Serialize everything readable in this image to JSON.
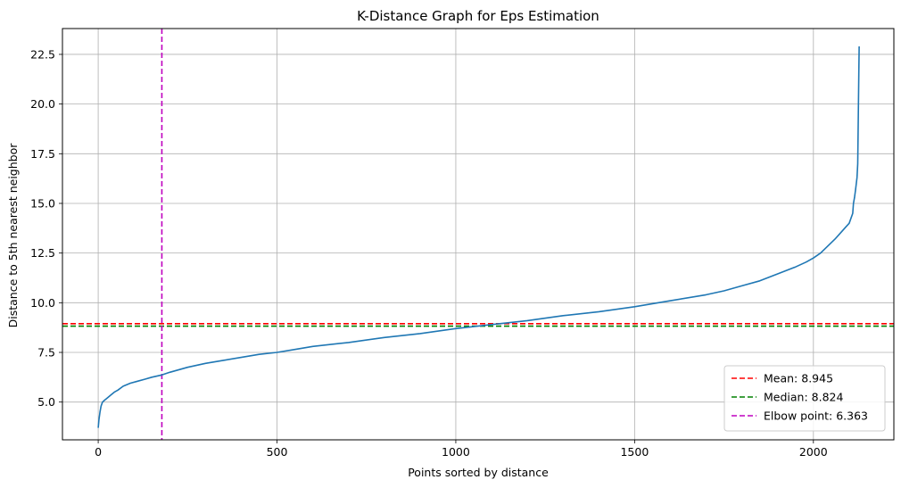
{
  "chart_data": {
    "type": "line",
    "title": "K-Distance Graph for Eps Estimation",
    "xlabel": "Points sorted by distance",
    "ylabel": "Distance to 5th nearest neighbor",
    "xlim": [
      -100,
      2225
    ],
    "ylim": [
      3.1,
      23.8
    ],
    "xticks": [
      0,
      500,
      1000,
      1500,
      2000
    ],
    "xtick_labels": [
      "0",
      "500",
      "1000",
      "1500",
      "2000"
    ],
    "yticks": [
      5.0,
      7.5,
      10.0,
      12.5,
      15.0,
      17.5,
      20.0,
      22.5
    ],
    "ytick_labels": [
      "5.0",
      "7.5",
      "10.0",
      "12.5",
      "15.0",
      "17.5",
      "20.0",
      "22.5"
    ],
    "grid": true,
    "legend_position": "bottom-right",
    "series": [
      {
        "color": "#1f77b4",
        "x": [
          0,
          2,
          5,
          8,
          12,
          18,
          25,
          35,
          45,
          55,
          70,
          90,
          110,
          130,
          150,
          178,
          200,
          250,
          300,
          350,
          400,
          450,
          500,
          550,
          600,
          700,
          800,
          900,
          1000,
          1100,
          1200,
          1300,
          1400,
          1500,
          1600,
          1700,
          1750,
          1800,
          1850,
          1900,
          1950,
          1980,
          2000,
          2020,
          2040,
          2060,
          2080,
          2090,
          2100,
          2110,
          2112,
          2115,
          2118,
          2120,
          2122,
          2124,
          2125,
          2126,
          2127,
          2128
        ],
        "y": [
          3.7,
          4.1,
          4.5,
          4.8,
          5.0,
          5.1,
          5.2,
          5.35,
          5.5,
          5.6,
          5.8,
          5.95,
          6.05,
          6.15,
          6.25,
          6.363,
          6.5,
          6.75,
          6.95,
          7.1,
          7.25,
          7.4,
          7.5,
          7.65,
          7.8,
          8.0,
          8.25,
          8.45,
          8.7,
          8.9,
          9.1,
          9.35,
          9.55,
          9.8,
          10.1,
          10.4,
          10.6,
          10.85,
          11.1,
          11.45,
          11.8,
          12.05,
          12.25,
          12.5,
          12.85,
          13.2,
          13.6,
          13.8,
          14.0,
          14.5,
          15.0,
          15.3,
          15.7,
          16.0,
          16.3,
          17.0,
          18.5,
          20.0,
          21.5,
          22.9
        ]
      }
    ],
    "reference_lines": [
      {
        "orientation": "horizontal",
        "value": 8.945,
        "color": "#ff0000",
        "label": "Mean: 8.945"
      },
      {
        "orientation": "horizontal",
        "value": 8.824,
        "color": "#008000",
        "label": "Median: 8.824"
      },
      {
        "orientation": "vertical",
        "value": 178,
        "color": "#bf00bf",
        "label": "Elbow point: 6.363"
      }
    ]
  }
}
